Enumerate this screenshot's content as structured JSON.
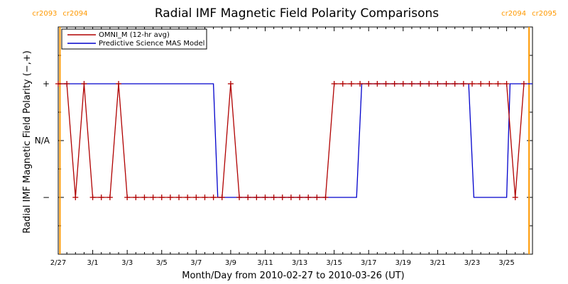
{
  "chart_data": {
    "type": "line",
    "title": "Radial IMF Magnetic Field Polarity Comparisons",
    "xlabel": "Month/Day from 2010-02-27 to 2010-03-26 (UT)",
    "ylabel": "Radial IMF Magnetic Field Polarity (−,+)",
    "x_ticks": [
      "2/27",
      "3/1",
      "3/3",
      "3/5",
      "3/7",
      "3/9",
      "3/11",
      "3/13",
      "3/15",
      "3/17",
      "3/19",
      "3/21",
      "3/23",
      "3/25"
    ],
    "y_ticks": [
      "−",
      "N/A",
      "+"
    ],
    "xlim_days": [
      0,
      27.5
    ],
    "ylim": [
      -2,
      2
    ],
    "carrington_markers": [
      {
        "day": 0.1,
        "left": "cr2093",
        "right": "cr2094"
      },
      {
        "day": 27.3,
        "left": "cr2094",
        "right": "cr2095"
      }
    ],
    "series": [
      {
        "name": "OMNI_M (12-hr avg)",
        "color": "#b00000",
        "markers": true,
        "x": [
          0.0,
          0.5,
          1.0,
          1.5,
          2.0,
          2.5,
          3.0,
          3.5,
          4.0,
          4.5,
          5.0,
          5.5,
          6.0,
          6.5,
          7.0,
          7.5,
          8.0,
          8.5,
          9.0,
          9.5,
          10.0,
          10.5,
          11.0,
          11.5,
          12.0,
          12.5,
          13.0,
          13.5,
          14.0,
          14.5,
          15.0,
          15.5,
          16.0,
          16.5,
          17.0,
          17.5,
          18.0,
          18.5,
          19.0,
          19.5,
          20.0,
          20.5,
          21.0,
          21.5,
          22.0,
          22.5,
          23.0,
          23.5,
          24.0,
          24.5,
          25.0,
          25.5,
          26.0,
          26.5,
          27.0
        ],
        "values": [
          1,
          1,
          -1,
          1,
          -1,
          -1,
          -1,
          1,
          -1,
          -1,
          -1,
          -1,
          -1,
          -1,
          -1,
          -1,
          -1,
          -1,
          -1,
          -1,
          1,
          -1,
          -1,
          -1,
          -1,
          -1,
          -1,
          -1,
          -1,
          -1,
          -1,
          -1,
          1,
          1,
          1,
          1,
          1,
          1,
          1,
          1,
          1,
          1,
          1,
          1,
          1,
          1,
          1,
          1,
          1,
          1,
          1,
          1,
          1,
          -1,
          1
        ]
      },
      {
        "name": "Predictive Science MAS Model",
        "color": "#0000cc",
        "markers": false,
        "x": [
          0.0,
          9.0,
          9.25,
          17.3,
          17.6,
          23.8,
          24.1,
          26.0,
          26.2,
          27.5
        ],
        "values": [
          1,
          1,
          -1,
          -1,
          1,
          1,
          -1,
          -1,
          1,
          1
        ]
      }
    ],
    "legend": "top-left"
  }
}
